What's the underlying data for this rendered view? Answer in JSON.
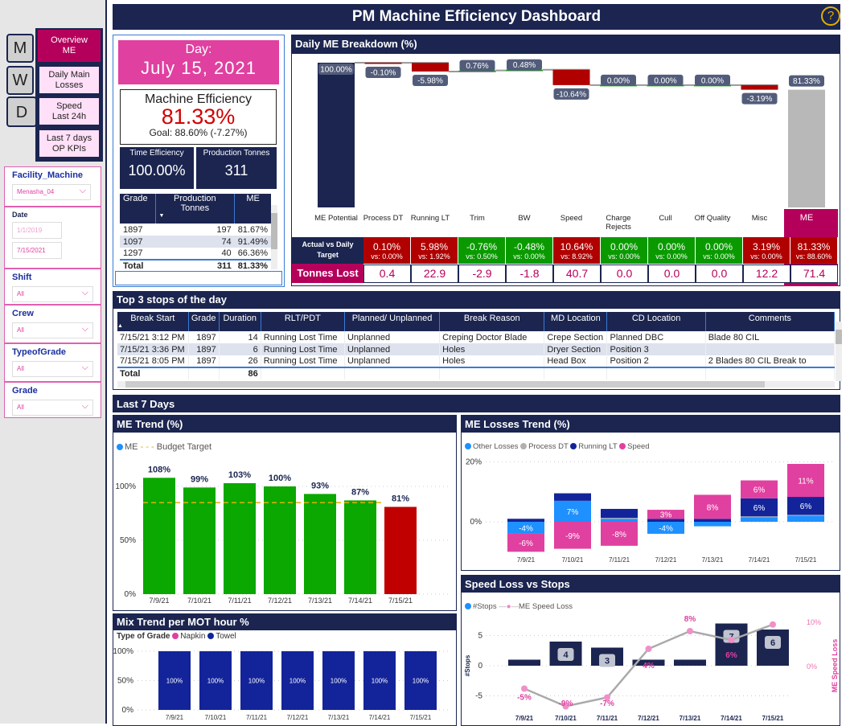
{
  "title": "PM Machine Efficiency Dashboard",
  "help_icon": "question-circle-icon",
  "nav": {
    "tabs": [
      "M",
      "W",
      "D"
    ],
    "active_tab": "D",
    "buttons": [
      {
        "label": "Overview ME",
        "active": true
      },
      {
        "label": "Daily Main Losses"
      },
      {
        "label": "Speed Last 24h"
      },
      {
        "label": "Last 7 days OP KPIs"
      }
    ]
  },
  "filters": {
    "facility": {
      "label": "Facility_Machine",
      "value": "Menasha_04"
    },
    "date": {
      "label": "Date",
      "start": "1/1/2019",
      "end": "7/15/2021"
    },
    "shift": {
      "label": "Shift",
      "value": "All"
    },
    "crew": {
      "label": "Crew",
      "value": "All"
    },
    "type": {
      "label": "TypeofGrade",
      "value": "All"
    },
    "grade": {
      "label": "Grade",
      "value": "All"
    }
  },
  "kpi": {
    "day_label": "Day:",
    "day_value": "July 15, 2021",
    "me_label": "Machine Efficiency",
    "me_value": "81.33%",
    "me_goal": "Goal: 88.60% (-7.27%)",
    "te_label": "Time Efficiency",
    "te_value": "100.00%",
    "pt_label": "Production Tonnes",
    "pt_value": "311"
  },
  "grade_table": {
    "headers": [
      "Grade",
      "Production Tonnes",
      "ME"
    ],
    "rows": [
      [
        "1897",
        "197",
        "81.67%"
      ],
      [
        "1097",
        "74",
        "91.49%"
      ],
      [
        "1297",
        "40",
        "66.36%"
      ]
    ],
    "total": [
      "Total",
      "311",
      "81.33%"
    ]
  },
  "breakdown": {
    "title": "Daily ME Breakdown (%)",
    "row_actual_label": "Actual vs Daily Target",
    "row_tonnes_label": "Tonnes Lost",
    "categories": [
      "ME Potential",
      "Process DT",
      "Running LT",
      "Trim",
      "BW",
      "Speed",
      "Charge Rejects",
      "Cull",
      "Off Quality",
      "Misc",
      "ME"
    ],
    "waterfall": [
      100,
      -0.1,
      -5.98,
      0.76,
      0.48,
      -10.64,
      0,
      0,
      0,
      -3.19,
      81.33
    ],
    "labels": [
      "100.00%",
      "-0.10%",
      "-5.98%",
      "0.76%",
      "0.48%",
      "-10.64%",
      "0.00%",
      "0.00%",
      "0.00%",
      "-3.19%",
      "81.33%"
    ],
    "actual": [
      {
        "a": "0.10%",
        "v": "vs: 0.00%",
        "status": "bad"
      },
      {
        "a": "5.98%",
        "v": "vs: 1.92%",
        "status": "bad"
      },
      {
        "a": "-0.76%",
        "v": "vs: 0.50%",
        "status": "good"
      },
      {
        "a": "-0.48%",
        "v": "vs: 0.00%",
        "status": "good"
      },
      {
        "a": "10.64%",
        "v": "vs: 8.92%",
        "status": "bad"
      },
      {
        "a": "0.00%",
        "v": "vs: 0.00%",
        "status": "good"
      },
      {
        "a": "0.00%",
        "v": "vs: 0.00%",
        "status": "good"
      },
      {
        "a": "0.00%",
        "v": "vs: 0.00%",
        "status": "good"
      },
      {
        "a": "3.19%",
        "v": "vs: 0.00%",
        "status": "bad"
      },
      {
        "a": "81.33%",
        "v": "vs: 88.60%",
        "status": "bad"
      }
    ],
    "tonnes": [
      "0.4",
      "22.9",
      "-2.9",
      "-1.8",
      "40.7",
      "0.0",
      "0.0",
      "0.0",
      "12.2",
      "71.4"
    ]
  },
  "stops": {
    "title": "Top 3 stops of the day",
    "headers": [
      "Break Start",
      "Grade",
      "Duration",
      "RLT/PDT",
      "Planned/ Unplanned",
      "Break Reason",
      "MD Location",
      "CD Location",
      "Comments"
    ],
    "rows": [
      [
        "7/15/21 3:12 PM",
        "1897",
        "14",
        "Running Lost Time",
        "Unplanned",
        "Creping Doctor Blade",
        "Crepe Section",
        "Planned DBC",
        "Blade 80 CIL"
      ],
      [
        "7/15/21 3:36 PM",
        "1897",
        "6",
        "Running Lost Time",
        "Unplanned",
        "Holes",
        "Dryer Section",
        "Position 3",
        ""
      ],
      [
        "7/15/21 8:05 PM",
        "1897",
        "26",
        "Running Lost Time",
        "Unplanned",
        "Holes",
        "Head Box",
        "Position 2",
        "2 Blades 80 CIL Break to"
      ]
    ],
    "total": [
      "Total",
      "",
      "86",
      "",
      "",
      "",
      "",
      "",
      ""
    ]
  },
  "last7_title": "Last 7 Days",
  "colors": {
    "navy": "#1b2550",
    "magenta": "#b5005b",
    "pink": "#e040a0",
    "green": "#0aa800",
    "red": "#c00000",
    "blue": "#1e90ff",
    "darkblue": "#13249a",
    "gray": "#b0b0b0",
    "gold": "#e0b000"
  },
  "chart_data": [
    {
      "type": "bar",
      "title": "ME Trend (%)",
      "legend": [
        "ME",
        "Budget Target"
      ],
      "categories": [
        "7/9/21",
        "7/10/21",
        "7/11/21",
        "7/12/21",
        "7/13/21",
        "7/14/21",
        "7/15/21"
      ],
      "values": [
        108,
        99,
        103,
        100,
        93,
        87,
        81
      ],
      "labels": [
        "108%",
        "99%",
        "103%",
        "100%",
        "93%",
        "87%",
        "81%"
      ],
      "budget_target": 85,
      "yticks": [
        "0%",
        "50%",
        "100%"
      ],
      "ylim": [
        0,
        120
      ]
    },
    {
      "type": "bar",
      "title": "ME Losses Trend (%)",
      "legend": [
        "Other Losses",
        "Process DT",
        "Running LT",
        "Speed"
      ],
      "categories": [
        "7/9/21",
        "7/10/21",
        "7/11/21",
        "7/12/21",
        "7/13/21",
        "7/14/21",
        "7/15/21"
      ],
      "series": [
        {
          "name": "Other Losses",
          "values": [
            -4,
            7,
            1,
            -4,
            -1.5,
            1.5,
            2
          ]
        },
        {
          "name": "Process DT",
          "values": [
            0,
            0,
            0.3,
            0,
            0,
            0.3,
            0.3
          ]
        },
        {
          "name": "Running LT",
          "values": [
            1,
            2.5,
            3,
            1,
            1,
            6,
            6
          ]
        },
        {
          "name": "Speed",
          "values": [
            -6,
            -9,
            -8,
            3,
            8,
            6,
            11
          ]
        }
      ],
      "yticks": [
        "0%",
        "20%"
      ],
      "ylim": [
        -12,
        20
      ]
    },
    {
      "type": "bar",
      "title": "Mix Trend per MOT hour %",
      "legend_title": "Type of Grade",
      "legend": [
        "Napkin",
        "Towel"
      ],
      "categories": [
        "7/9/21",
        "7/10/21",
        "7/11/21",
        "7/12/21",
        "7/13/21",
        "7/14/21",
        "7/15/21"
      ],
      "series": [
        {
          "name": "Towel",
          "values": [
            100,
            100,
            100,
            100,
            100,
            100,
            100
          ]
        }
      ],
      "labels": [
        "100%",
        "100%",
        "100%",
        "100%",
        "100%",
        "100%",
        "100%"
      ],
      "yticks": [
        "0%",
        "50%",
        "100%"
      ],
      "ylim": [
        0,
        100
      ]
    },
    {
      "type": "bar",
      "title": "Speed Loss vs Stops",
      "legend": [
        "#Stops",
        "ME Speed Loss"
      ],
      "ylabel": "#Stops",
      "y2label": "ME Speed Loss",
      "categories": [
        "7/9/21",
        "7/10/21",
        "7/11/21",
        "7/12/21",
        "7/13/21",
        "7/14/21",
        "7/15/21"
      ],
      "stops": [
        1,
        4,
        3,
        1,
        1,
        7,
        6
      ],
      "stop_labels": [
        "",
        "4",
        "3",
        "",
        "",
        "7",
        "6"
      ],
      "speed_loss": [
        -5,
        -9,
        -7,
        4,
        8,
        6,
        9.5
      ],
      "speed_labels": [
        "-5%",
        "-9%",
        "-7%",
        "4%",
        "8%",
        "6%",
        ""
      ],
      "yticks": [
        "-5",
        "0",
        "5"
      ],
      "y2ticks": [
        "0%",
        "10%"
      ],
      "ylim": [
        -6,
        8
      ],
      "y2lim": [
        -10,
        10
      ]
    }
  ]
}
